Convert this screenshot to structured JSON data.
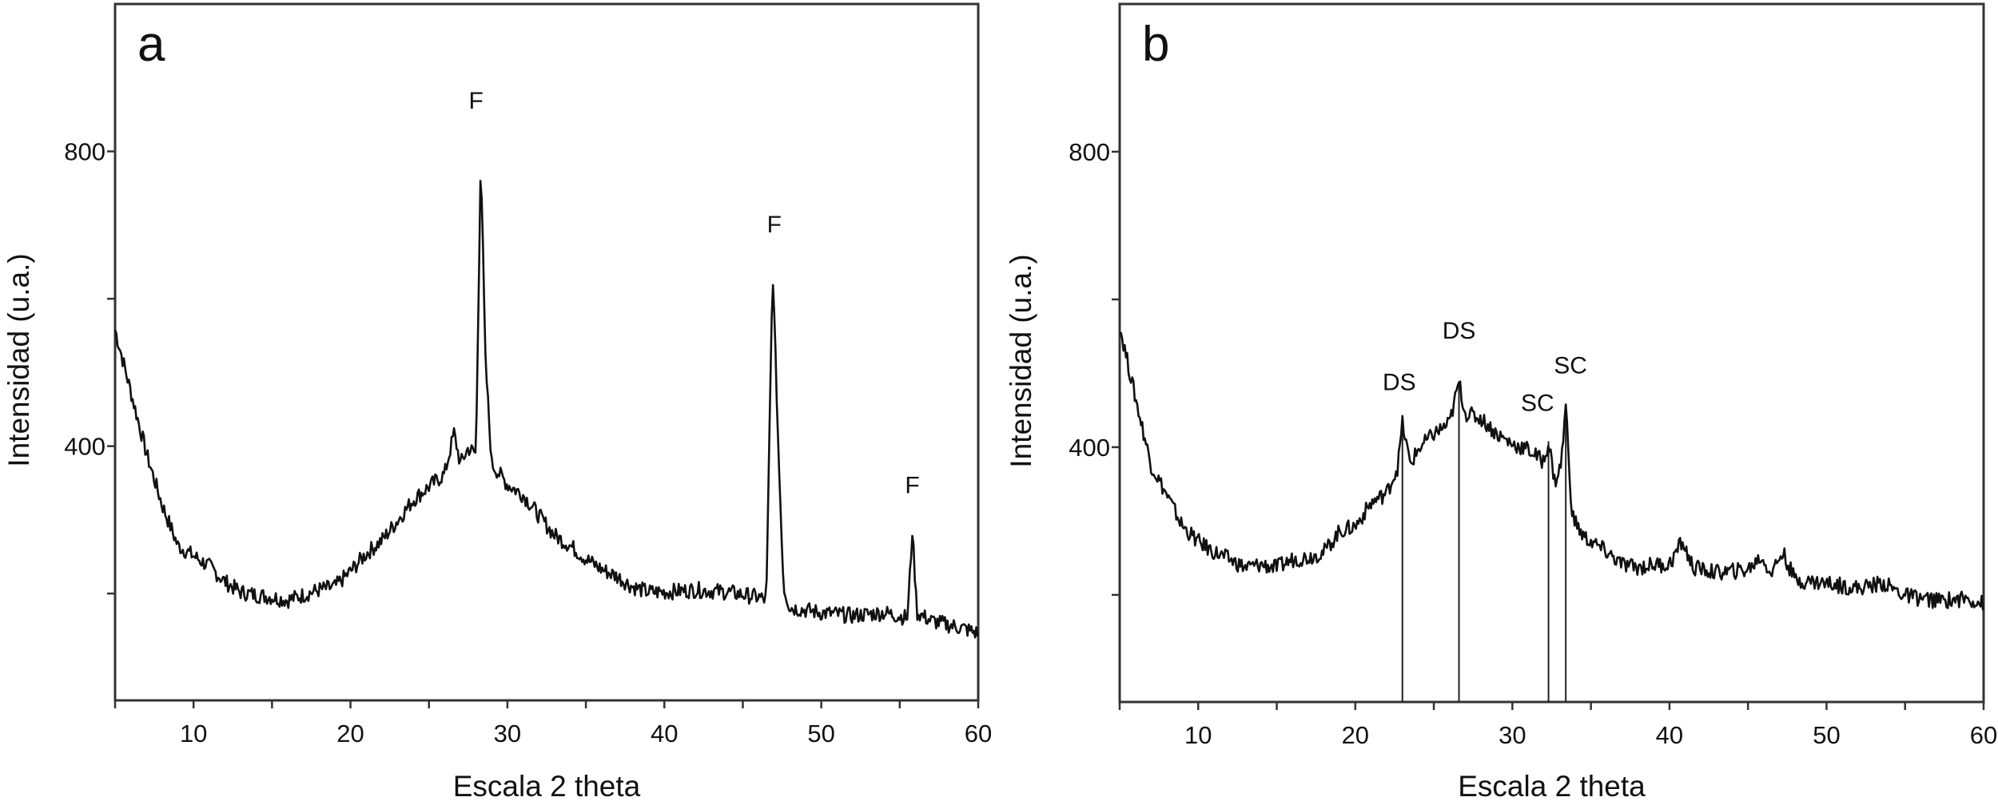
{
  "chart_data": [
    {
      "type": "line",
      "panel_label": "a",
      "xlabel": "Escala 2 theta",
      "ylabel": "Intensidad (u.a.)",
      "xlim": [
        5,
        60
      ],
      "ylim": [
        55,
        1000
      ],
      "xticks": [
        10,
        20,
        30,
        40,
        50,
        60
      ],
      "yticks_labeled": [
        400,
        800
      ],
      "yticks_minor": [
        200,
        600
      ],
      "grid": false,
      "series": [
        {
          "name": "a",
          "x": [
            5,
            6,
            7,
            8,
            9,
            10,
            11,
            12,
            13,
            14,
            15,
            16,
            17,
            18,
            19,
            20,
            21,
            22,
            23,
            24,
            25,
            26,
            26.6,
            27,
            27.5,
            28,
            28.3,
            28.6,
            29,
            30,
            31,
            32,
            33,
            34,
            35,
            36,
            37,
            38,
            39,
            40,
            42,
            44,
            46,
            46.5,
            46.9,
            47.3,
            47.6,
            48,
            50,
            52,
            54,
            55.5,
            55.8,
            56.1,
            57,
            59,
            60
          ],
          "y": [
            558,
            474,
            390,
            320,
            265,
            251,
            237,
            216,
            202,
            198,
            195,
            191,
            198,
            205,
            209,
            230,
            254,
            272,
            299,
            327,
            345,
            362,
            418,
            376,
            397,
            390,
            795,
            516,
            376,
            348,
            334,
            306,
            279,
            265,
            247,
            233,
            223,
            209,
            202,
            202,
            205,
            202,
            195,
            191,
            642,
            376,
            209,
            181,
            174,
            170,
            174,
            167,
            286,
            174,
            163,
            153,
            146
          ]
        }
      ],
      "annotations": [
        {
          "text": "F",
          "x": 28.0,
          "y": 858
        },
        {
          "text": "F",
          "x": 47.0,
          "y": 690
        },
        {
          "text": "F",
          "x": 55.8,
          "y": 336
        }
      ],
      "reference_lines": []
    },
    {
      "type": "line",
      "panel_label": "b",
      "xlabel": "Escala 2 theta",
      "ylabel": "Intensidad (u.a.)",
      "xlim": [
        5,
        60
      ],
      "ylim": [
        55,
        1000
      ],
      "xticks": [
        10,
        20,
        30,
        40,
        50,
        60
      ],
      "yticks_labeled": [
        400,
        800
      ],
      "yticks_minor": [
        200,
        600
      ],
      "grid": false,
      "series": [
        {
          "name": "b",
          "x": [
            5,
            6,
            7,
            8,
            9,
            10,
            11,
            12,
            13,
            14,
            15,
            16,
            17,
            18,
            19,
            20,
            21,
            22,
            22.7,
            23,
            23.5,
            24,
            25,
            26,
            26.6,
            27,
            28,
            29,
            30,
            31,
            32,
            32.3,
            32.7,
            33.1,
            33.4,
            33.8,
            34.5,
            35,
            36,
            37,
            38,
            39,
            40,
            40.8,
            41.5,
            43,
            45,
            45.8,
            46.5,
            47.2,
            48,
            50,
            52,
            53.6,
            55,
            57,
            59,
            60
          ],
          "y": [
            564,
            467,
            376,
            335,
            293,
            272,
            258,
            248,
            237,
            241,
            237,
            248,
            251,
            258,
            286,
            293,
            324,
            338,
            373,
            432,
            376,
            397,
            418,
            432,
            488,
            446,
            439,
            418,
            404,
            397,
            380,
            408,
            352,
            376,
            456,
            307,
            279,
            272,
            258,
            241,
            237,
            241,
            241,
            272,
            237,
            230,
            234,
            251,
            230,
            258,
            220,
            216,
            209,
            216,
            199,
            192,
            195,
            188
          ]
        }
      ],
      "annotations": [
        {
          "text": "DS",
          "x": 22.8,
          "y": 477
        },
        {
          "text": "DS",
          "x": 26.6,
          "y": 547
        },
        {
          "text": "SC",
          "x": 31.6,
          "y": 449
        },
        {
          "text": "SC",
          "x": 33.7,
          "y": 500
        }
      ],
      "reference_lines": [
        23.0,
        26.6,
        32.3,
        33.4
      ]
    }
  ]
}
